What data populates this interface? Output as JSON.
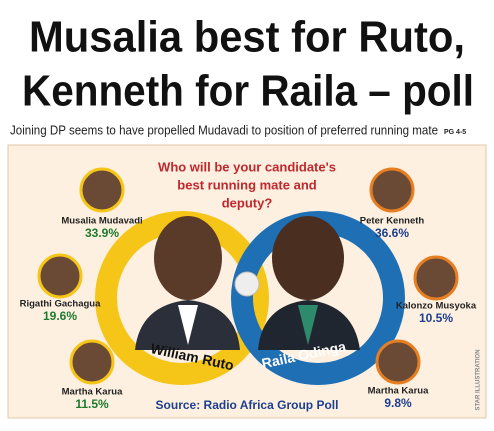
{
  "header": {
    "headline": [
      "Musalia best for Ruto,",
      "Kenneth for Raila – poll"
    ],
    "subhead": "Joining DP seems to have propelled Mudavadi to position of preferred running mate",
    "page_ref": "PG 4-5"
  },
  "infographic": {
    "question": [
      "Who will be your candidate's",
      "best running mate and",
      "deputy?"
    ],
    "candidates": [
      {
        "name": "William Ruto",
        "running_mates": [
          {
            "name": "Musalia Mudavadi",
            "share": "33.9%"
          },
          {
            "name": "Rigathi Gachagua",
            "share": "19.6%"
          },
          {
            "name": "Martha Karua",
            "share": "11.5%"
          }
        ]
      },
      {
        "name": "Raila Odinga",
        "running_mates": [
          {
            "name": "Peter Kenneth",
            "share": "36.6%"
          },
          {
            "name": "Kalonzo Musyoka",
            "share": "10.5%"
          },
          {
            "name": "Martha Karua",
            "share": "9.8%"
          }
        ]
      }
    ],
    "source": "Source: Radio Africa Group Poll",
    "credit": "STAR ILLUSTRATION"
  }
}
